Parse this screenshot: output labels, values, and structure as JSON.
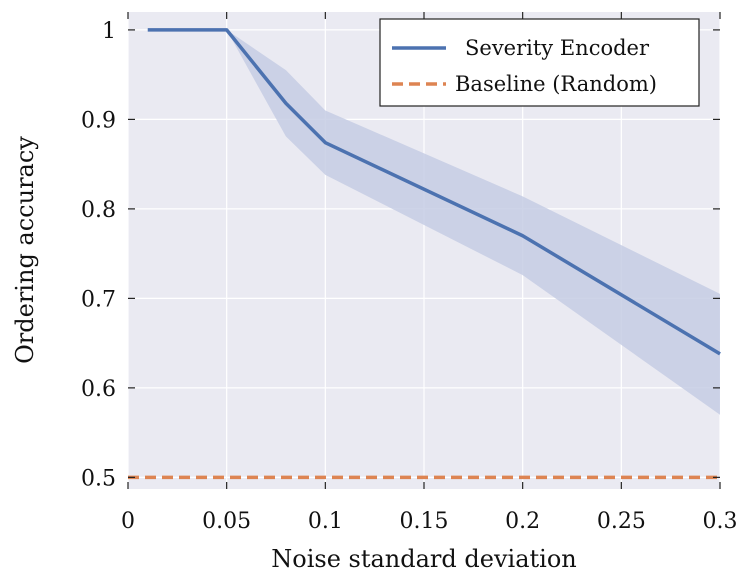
{
  "chart_data": {
    "type": "line",
    "title": "",
    "xlabel": "Noise standard deviation",
    "ylabel": "Ordering accuracy",
    "xlim": [
      0,
      0.3
    ],
    "ylim": [
      0.487,
      1.02
    ],
    "xticks": [
      0,
      0.05,
      0.1,
      0.15,
      0.2,
      0.25,
      0.3
    ],
    "xtick_labels": [
      "0",
      "0.05",
      "0.1",
      "0.15",
      "0.2",
      "0.25",
      "0.3"
    ],
    "yticks": [
      0.5,
      0.6,
      0.7,
      0.8,
      0.9,
      1.0
    ],
    "ytick_labels": [
      "0.5",
      "0.6",
      "0.7",
      "0.8",
      "0.9",
      "1"
    ],
    "grid": true,
    "legend_position": "top-right",
    "series": [
      {
        "name": "Severity Encoder",
        "style": "solid",
        "color": "#4c72b0",
        "x": [
          0.01,
          0.05,
          0.08,
          0.1,
          0.2,
          0.3
        ],
        "y": [
          1.0,
          1.0,
          0.918,
          0.874,
          0.77,
          0.638
        ],
        "band_lower": [
          1.0,
          1.0,
          0.881,
          0.838,
          0.726,
          0.57
        ],
        "band_upper": [
          1.0,
          1.0,
          0.955,
          0.91,
          0.814,
          0.705
        ]
      },
      {
        "name": "Baseline (Random)",
        "style": "dashed",
        "color": "#dd8452",
        "x": [
          0,
          0.3
        ],
        "y": [
          0.5,
          0.5
        ]
      }
    ]
  },
  "colors": {
    "plot_background": "#eaeaf2",
    "grid": "#ffffff",
    "band": "#c5cde4"
  }
}
